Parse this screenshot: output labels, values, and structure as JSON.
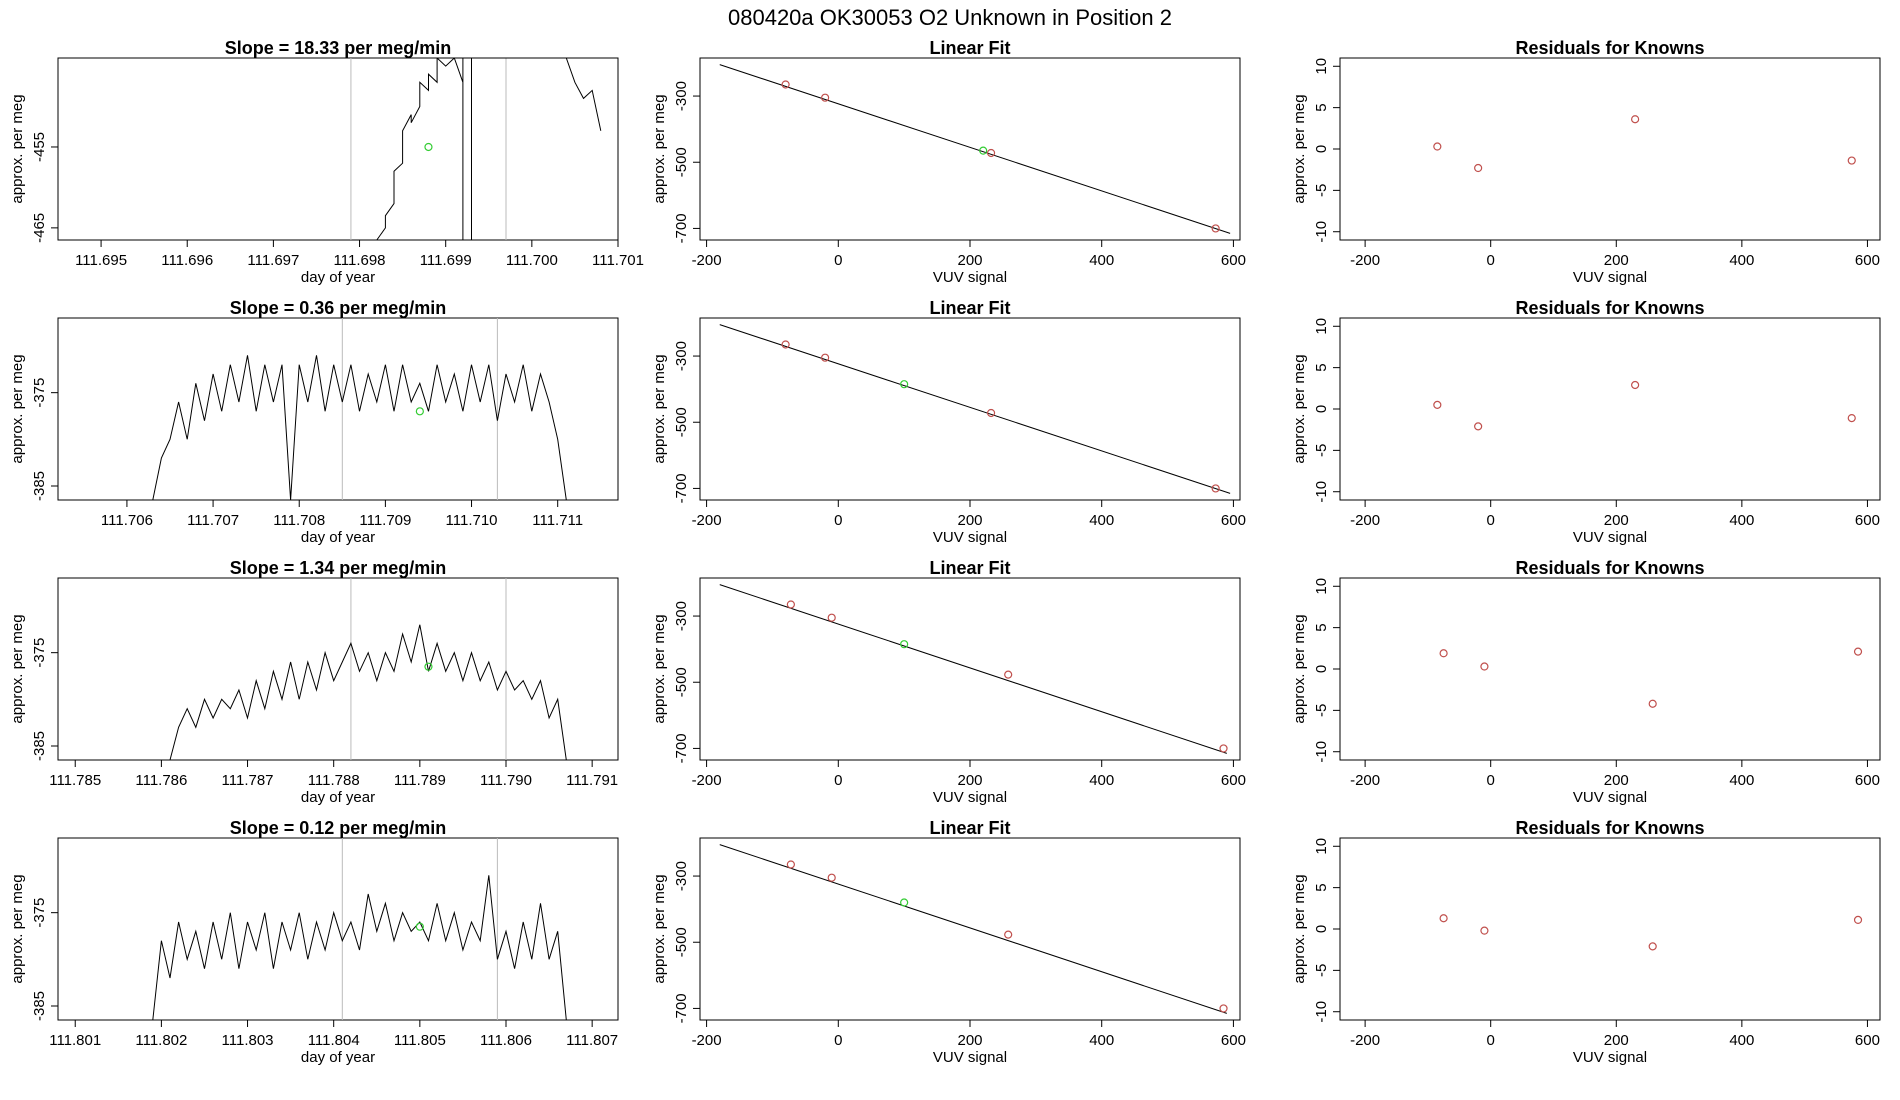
{
  "title": "080420a      OK30053    O2 Unknown in Position  2",
  "colors": {
    "line": "#000000",
    "known": "#c0504d",
    "unknown": "#33cc33",
    "guide": "#bbbbbb"
  },
  "chart_data": [
    {
      "type": "line",
      "title": "Slope =  18.33  per meg/min",
      "xlabel": "day of year",
      "ylabel": "approx. per meg",
      "xlim": [
        111.6945,
        111.701
      ],
      "ylim": [
        -466.5,
        -444
      ],
      "xticks": [
        "111.695",
        "111.696",
        "111.697",
        "111.698",
        "111.699",
        "111.700",
        "111.701"
      ],
      "yticks": [
        "-455",
        "-465"
      ],
      "guide_lines": [
        111.6979,
        111.6997
      ],
      "unknown_point": {
        "x": 111.6988,
        "y": -455
      },
      "trace": [
        [
          111.6982,
          -466.5
        ],
        [
          111.6983,
          -465
        ],
        [
          111.6983,
          -463.5
        ],
        [
          111.6984,
          -462
        ],
        [
          111.6984,
          -458
        ],
        [
          111.6985,
          -457
        ],
        [
          111.6985,
          -453
        ],
        [
          111.6986,
          -451
        ],
        [
          111.6986,
          -452
        ],
        [
          111.6987,
          -450
        ],
        [
          111.6987,
          -447
        ],
        [
          111.6988,
          -448
        ],
        [
          111.6988,
          -446
        ],
        [
          111.6989,
          -447
        ],
        [
          111.6989,
          -444
        ],
        [
          111.699,
          -445
        ],
        [
          111.6991,
          -444
        ],
        [
          111.6992,
          -447
        ],
        [
          111.6992,
          -444
        ],
        [
          111.6992,
          -466.5
        ],
        [
          111.6993,
          -466.5
        ],
        [
          111.6993,
          -444
        ],
        [
          111.7004,
          -444
        ],
        [
          111.7005,
          -447
        ],
        [
          111.7006,
          -449
        ],
        [
          111.7007,
          -448
        ],
        [
          111.7008,
          -453
        ]
      ]
    },
    {
      "type": "line",
      "title": "Slope =  0.36  per meg/min",
      "xlabel": "day of year",
      "ylabel": "approx. per meg",
      "xlim": [
        111.7052,
        111.7117
      ],
      "ylim": [
        -386.5,
        -367
      ],
      "xticks": [
        "111.706",
        "111.707",
        "111.708",
        "111.709",
        "111.710",
        "111.711"
      ],
      "yticks": [
        "-375",
        "-385"
      ],
      "guide_lines": [
        111.7085,
        111.7103
      ],
      "unknown_point": {
        "x": 111.7094,
        "y": -377
      },
      "trace": [
        [
          111.7063,
          -386.5
        ],
        [
          111.7064,
          -382
        ],
        [
          111.7065,
          -380
        ],
        [
          111.7066,
          -376
        ],
        [
          111.7067,
          -380
        ],
        [
          111.7068,
          -374
        ],
        [
          111.7069,
          -378
        ],
        [
          111.707,
          -373
        ],
        [
          111.7071,
          -377
        ],
        [
          111.7072,
          -372
        ],
        [
          111.7073,
          -376
        ],
        [
          111.7074,
          -371
        ],
        [
          111.7075,
          -377
        ],
        [
          111.7076,
          -372
        ],
        [
          111.7077,
          -376
        ],
        [
          111.7078,
          -372
        ],
        [
          111.7079,
          -386.5
        ],
        [
          111.708,
          -372
        ],
        [
          111.7081,
          -376
        ],
        [
          111.7082,
          -371
        ],
        [
          111.7083,
          -377
        ],
        [
          111.7084,
          -372
        ],
        [
          111.7085,
          -376
        ],
        [
          111.7086,
          -372
        ],
        [
          111.7087,
          -377
        ],
        [
          111.7088,
          -373
        ],
        [
          111.7089,
          -376
        ],
        [
          111.709,
          -372
        ],
        [
          111.7091,
          -377
        ],
        [
          111.7092,
          -372
        ],
        [
          111.7093,
          -376
        ],
        [
          111.7094,
          -374
        ],
        [
          111.7095,
          -377
        ],
        [
          111.7096,
          -372
        ],
        [
          111.7097,
          -376
        ],
        [
          111.7098,
          -373
        ],
        [
          111.7099,
          -377
        ],
        [
          111.71,
          -372
        ],
        [
          111.7101,
          -376
        ],
        [
          111.7102,
          -372
        ],
        [
          111.7103,
          -378
        ],
        [
          111.7104,
          -373
        ],
        [
          111.7105,
          -376
        ],
        [
          111.7106,
          -372
        ],
        [
          111.7107,
          -377
        ],
        [
          111.7108,
          -373
        ],
        [
          111.7109,
          -376
        ],
        [
          111.711,
          -380
        ],
        [
          111.7111,
          -386.5
        ]
      ]
    },
    {
      "type": "line",
      "title": "Slope =  1.34  per meg/min",
      "xlabel": "day of year",
      "ylabel": "approx. per meg",
      "xlim": [
        111.7848,
        111.7913
      ],
      "ylim": [
        -386.5,
        -367
      ],
      "xticks": [
        "111.785",
        "111.786",
        "111.787",
        "111.788",
        "111.789",
        "111.790",
        "111.791"
      ],
      "yticks": [
        "-375",
        "-385"
      ],
      "guide_lines": [
        111.7882,
        111.79
      ],
      "unknown_point": {
        "x": 111.7891,
        "y": -376.5
      },
      "trace": [
        [
          111.7861,
          -386.5
        ],
        [
          111.7862,
          -383
        ],
        [
          111.7863,
          -381
        ],
        [
          111.7864,
          -383
        ],
        [
          111.7865,
          -380
        ],
        [
          111.7866,
          -382
        ],
        [
          111.7867,
          -380
        ],
        [
          111.7868,
          -381
        ],
        [
          111.7869,
          -379
        ],
        [
          111.787,
          -382
        ],
        [
          111.7871,
          -378
        ],
        [
          111.7872,
          -381
        ],
        [
          111.7873,
          -377
        ],
        [
          111.7874,
          -380
        ],
        [
          111.7875,
          -376
        ],
        [
          111.7876,
          -380
        ],
        [
          111.7877,
          -376
        ],
        [
          111.7878,
          -379
        ],
        [
          111.7879,
          -375
        ],
        [
          111.788,
          -378
        ],
        [
          111.7881,
          -376
        ],
        [
          111.7882,
          -374
        ],
        [
          111.7883,
          -377
        ],
        [
          111.7884,
          -375
        ],
        [
          111.7885,
          -378
        ],
        [
          111.7886,
          -375
        ],
        [
          111.7887,
          -377
        ],
        [
          111.7888,
          -373
        ],
        [
          111.7889,
          -376
        ],
        [
          111.789,
          -372
        ],
        [
          111.7891,
          -377
        ],
        [
          111.7892,
          -374
        ],
        [
          111.7893,
          -377
        ],
        [
          111.7894,
          -375
        ],
        [
          111.7895,
          -378
        ],
        [
          111.7896,
          -375
        ],
        [
          111.7897,
          -378
        ],
        [
          111.7898,
          -376
        ],
        [
          111.7899,
          -379
        ],
        [
          111.79,
          -377
        ],
        [
          111.7901,
          -379
        ],
        [
          111.7902,
          -378
        ],
        [
          111.7903,
          -380
        ],
        [
          111.7904,
          -378
        ],
        [
          111.7905,
          -382
        ],
        [
          111.7906,
          -380
        ],
        [
          111.7907,
          -386.5
        ]
      ]
    },
    {
      "type": "line",
      "title": "Slope =  0.12  per meg/min",
      "xlabel": "day of year",
      "ylabel": "approx. per meg",
      "xlim": [
        111.8008,
        111.8073
      ],
      "ylim": [
        -386.5,
        -367
      ],
      "xticks": [
        "111.801",
        "111.802",
        "111.803",
        "111.804",
        "111.805",
        "111.806",
        "111.807"
      ],
      "yticks": [
        "-375",
        "-385"
      ],
      "guide_lines": [
        111.8041,
        111.8059
      ],
      "unknown_point": {
        "x": 111.805,
        "y": -376.5
      },
      "trace": [
        [
          111.8019,
          -386.5
        ],
        [
          111.802,
          -378
        ],
        [
          111.8021,
          -382
        ],
        [
          111.8022,
          -376
        ],
        [
          111.8023,
          -380
        ],
        [
          111.8024,
          -377
        ],
        [
          111.8025,
          -381
        ],
        [
          111.8026,
          -376
        ],
        [
          111.8027,
          -380
        ],
        [
          111.8028,
          -375
        ],
        [
          111.8029,
          -381
        ],
        [
          111.803,
          -376
        ],
        [
          111.8031,
          -379
        ],
        [
          111.8032,
          -375
        ],
        [
          111.8033,
          -381
        ],
        [
          111.8034,
          -376
        ],
        [
          111.8035,
          -379
        ],
        [
          111.8036,
          -375
        ],
        [
          111.8037,
          -380
        ],
        [
          111.8038,
          -376
        ],
        [
          111.8039,
          -379
        ],
        [
          111.804,
          -375
        ],
        [
          111.8041,
          -378
        ],
        [
          111.8042,
          -376
        ],
        [
          111.8043,
          -379
        ],
        [
          111.8044,
          -373
        ],
        [
          111.8045,
          -377
        ],
        [
          111.8046,
          -374
        ],
        [
          111.8047,
          -378
        ],
        [
          111.8048,
          -375
        ],
        [
          111.8049,
          -377
        ],
        [
          111.805,
          -376
        ],
        [
          111.8051,
          -378
        ],
        [
          111.8052,
          -374
        ],
        [
          111.8053,
          -378
        ],
        [
          111.8054,
          -375
        ],
        [
          111.8055,
          -379
        ],
        [
          111.8056,
          -376
        ],
        [
          111.8057,
          -378
        ],
        [
          111.8058,
          -371
        ],
        [
          111.8059,
          -380
        ],
        [
          111.806,
          -377
        ],
        [
          111.8061,
          -381
        ],
        [
          111.8062,
          -376
        ],
        [
          111.8063,
          -380
        ],
        [
          111.8064,
          -374
        ],
        [
          111.8065,
          -380
        ],
        [
          111.8066,
          -377
        ],
        [
          111.8067,
          -386.5
        ]
      ]
    },
    {
      "type": "scatter",
      "title": "Linear Fit",
      "xlabel": "VUV signal",
      "ylabel": "approx. per meg",
      "xlim": [
        -210,
        610
      ],
      "ylim": [
        -735,
        -185
      ],
      "xticks": [
        -200,
        0,
        200,
        400,
        600
      ],
      "yticks": [
        -300,
        -500,
        -700
      ],
      "fit_line": [
        [
          -180,
          -205
        ],
        [
          595,
          -715
        ]
      ],
      "knowns": [
        [
          -80,
          -265
        ],
        [
          -20,
          -305
        ],
        [
          232,
          -472
        ],
        [
          573,
          -700
        ]
      ],
      "unknown": [
        [
          220,
          -465
        ]
      ]
    },
    {
      "type": "scatter",
      "title": "Linear Fit",
      "xlabel": "VUV signal",
      "ylabel": "approx. per meg",
      "xlim": [
        -210,
        610
      ],
      "ylim": [
        -735,
        -185
      ],
      "xticks": [
        -200,
        0,
        200,
        400,
        600
      ],
      "yticks": [
        -300,
        -500,
        -700
      ],
      "fit_line": [
        [
          -180,
          -205
        ],
        [
          595,
          -715
        ]
      ],
      "knowns": [
        [
          -80,
          -265
        ],
        [
          -20,
          -305
        ],
        [
          232,
          -472
        ],
        [
          573,
          -700
        ]
      ],
      "unknown": [
        [
          100,
          -385
        ]
      ]
    },
    {
      "type": "scatter",
      "title": "Linear Fit",
      "xlabel": "VUV signal",
      "ylabel": "approx. per meg",
      "xlim": [
        -210,
        610
      ],
      "ylim": [
        -735,
        -185
      ],
      "xticks": [
        -200,
        0,
        200,
        400,
        600
      ],
      "yticks": [
        -300,
        -500,
        -700
      ],
      "fit_line": [
        [
          -180,
          -205
        ],
        [
          590,
          -715
        ]
      ],
      "knowns": [
        [
          -72,
          -265
        ],
        [
          -10,
          -305
        ],
        [
          258,
          -477
        ],
        [
          585,
          -700
        ]
      ],
      "unknown": [
        [
          100,
          -385
        ]
      ]
    },
    {
      "type": "scatter",
      "title": "Linear Fit",
      "xlabel": "VUV signal",
      "ylabel": "approx. per meg",
      "xlim": [
        -210,
        610
      ],
      "ylim": [
        -735,
        -185
      ],
      "xticks": [
        -200,
        0,
        200,
        400,
        600
      ],
      "yticks": [
        -300,
        -500,
        -700
      ],
      "fit_line": [
        [
          -180,
          -205
        ],
        [
          590,
          -715
        ]
      ],
      "knowns": [
        [
          -72,
          -265
        ],
        [
          -10,
          -305
        ],
        [
          258,
          -477
        ],
        [
          585,
          -700
        ]
      ],
      "unknown": [
        [
          100,
          -380
        ]
      ]
    },
    {
      "type": "scatter",
      "title": "Residuals for Knowns",
      "xlabel": "VUV signal",
      "ylabel": "approx. per meg",
      "xlim": [
        -240,
        620
      ],
      "ylim": [
        -11,
        11
      ],
      "xticks": [
        -200,
        0,
        200,
        400,
        600
      ],
      "yticks": [
        10,
        5,
        0,
        -5,
        -10
      ],
      "points": [
        [
          -85,
          0.3
        ],
        [
          -20,
          -2.3
        ],
        [
          230,
          3.6
        ],
        [
          575,
          -1.4
        ]
      ]
    },
    {
      "type": "scatter",
      "title": "Residuals for Knowns",
      "xlabel": "VUV signal",
      "ylabel": "approx. per meg",
      "xlim": [
        -240,
        620
      ],
      "ylim": [
        -11,
        11
      ],
      "xticks": [
        -200,
        0,
        200,
        400,
        600
      ],
      "yticks": [
        10,
        5,
        0,
        -5,
        -10
      ],
      "points": [
        [
          -85,
          0.5
        ],
        [
          -20,
          -2.1
        ],
        [
          230,
          2.9
        ],
        [
          575,
          -1.1
        ]
      ]
    },
    {
      "type": "scatter",
      "title": "Residuals for Knowns",
      "xlabel": "VUV signal",
      "ylabel": "approx. per meg",
      "xlim": [
        -240,
        620
      ],
      "ylim": [
        -11,
        11
      ],
      "xticks": [
        -200,
        0,
        200,
        400,
        600
      ],
      "yticks": [
        10,
        5,
        0,
        -5,
        -10
      ],
      "points": [
        [
          -75,
          1.9
        ],
        [
          -10,
          0.3
        ],
        [
          258,
          -4.2
        ],
        [
          585,
          2.1
        ]
      ]
    },
    {
      "type": "scatter",
      "title": "Residuals for Knowns",
      "xlabel": "VUV signal",
      "ylabel": "approx. per meg",
      "xlim": [
        -240,
        620
      ],
      "ylim": [
        -11,
        11
      ],
      "xticks": [
        -200,
        0,
        200,
        400,
        600
      ],
      "yticks": [
        10,
        5,
        0,
        -5,
        -10
      ],
      "points": [
        [
          -75,
          1.3
        ],
        [
          -10,
          -0.2
        ],
        [
          258,
          -2.1
        ],
        [
          585,
          1.1
        ]
      ]
    }
  ]
}
